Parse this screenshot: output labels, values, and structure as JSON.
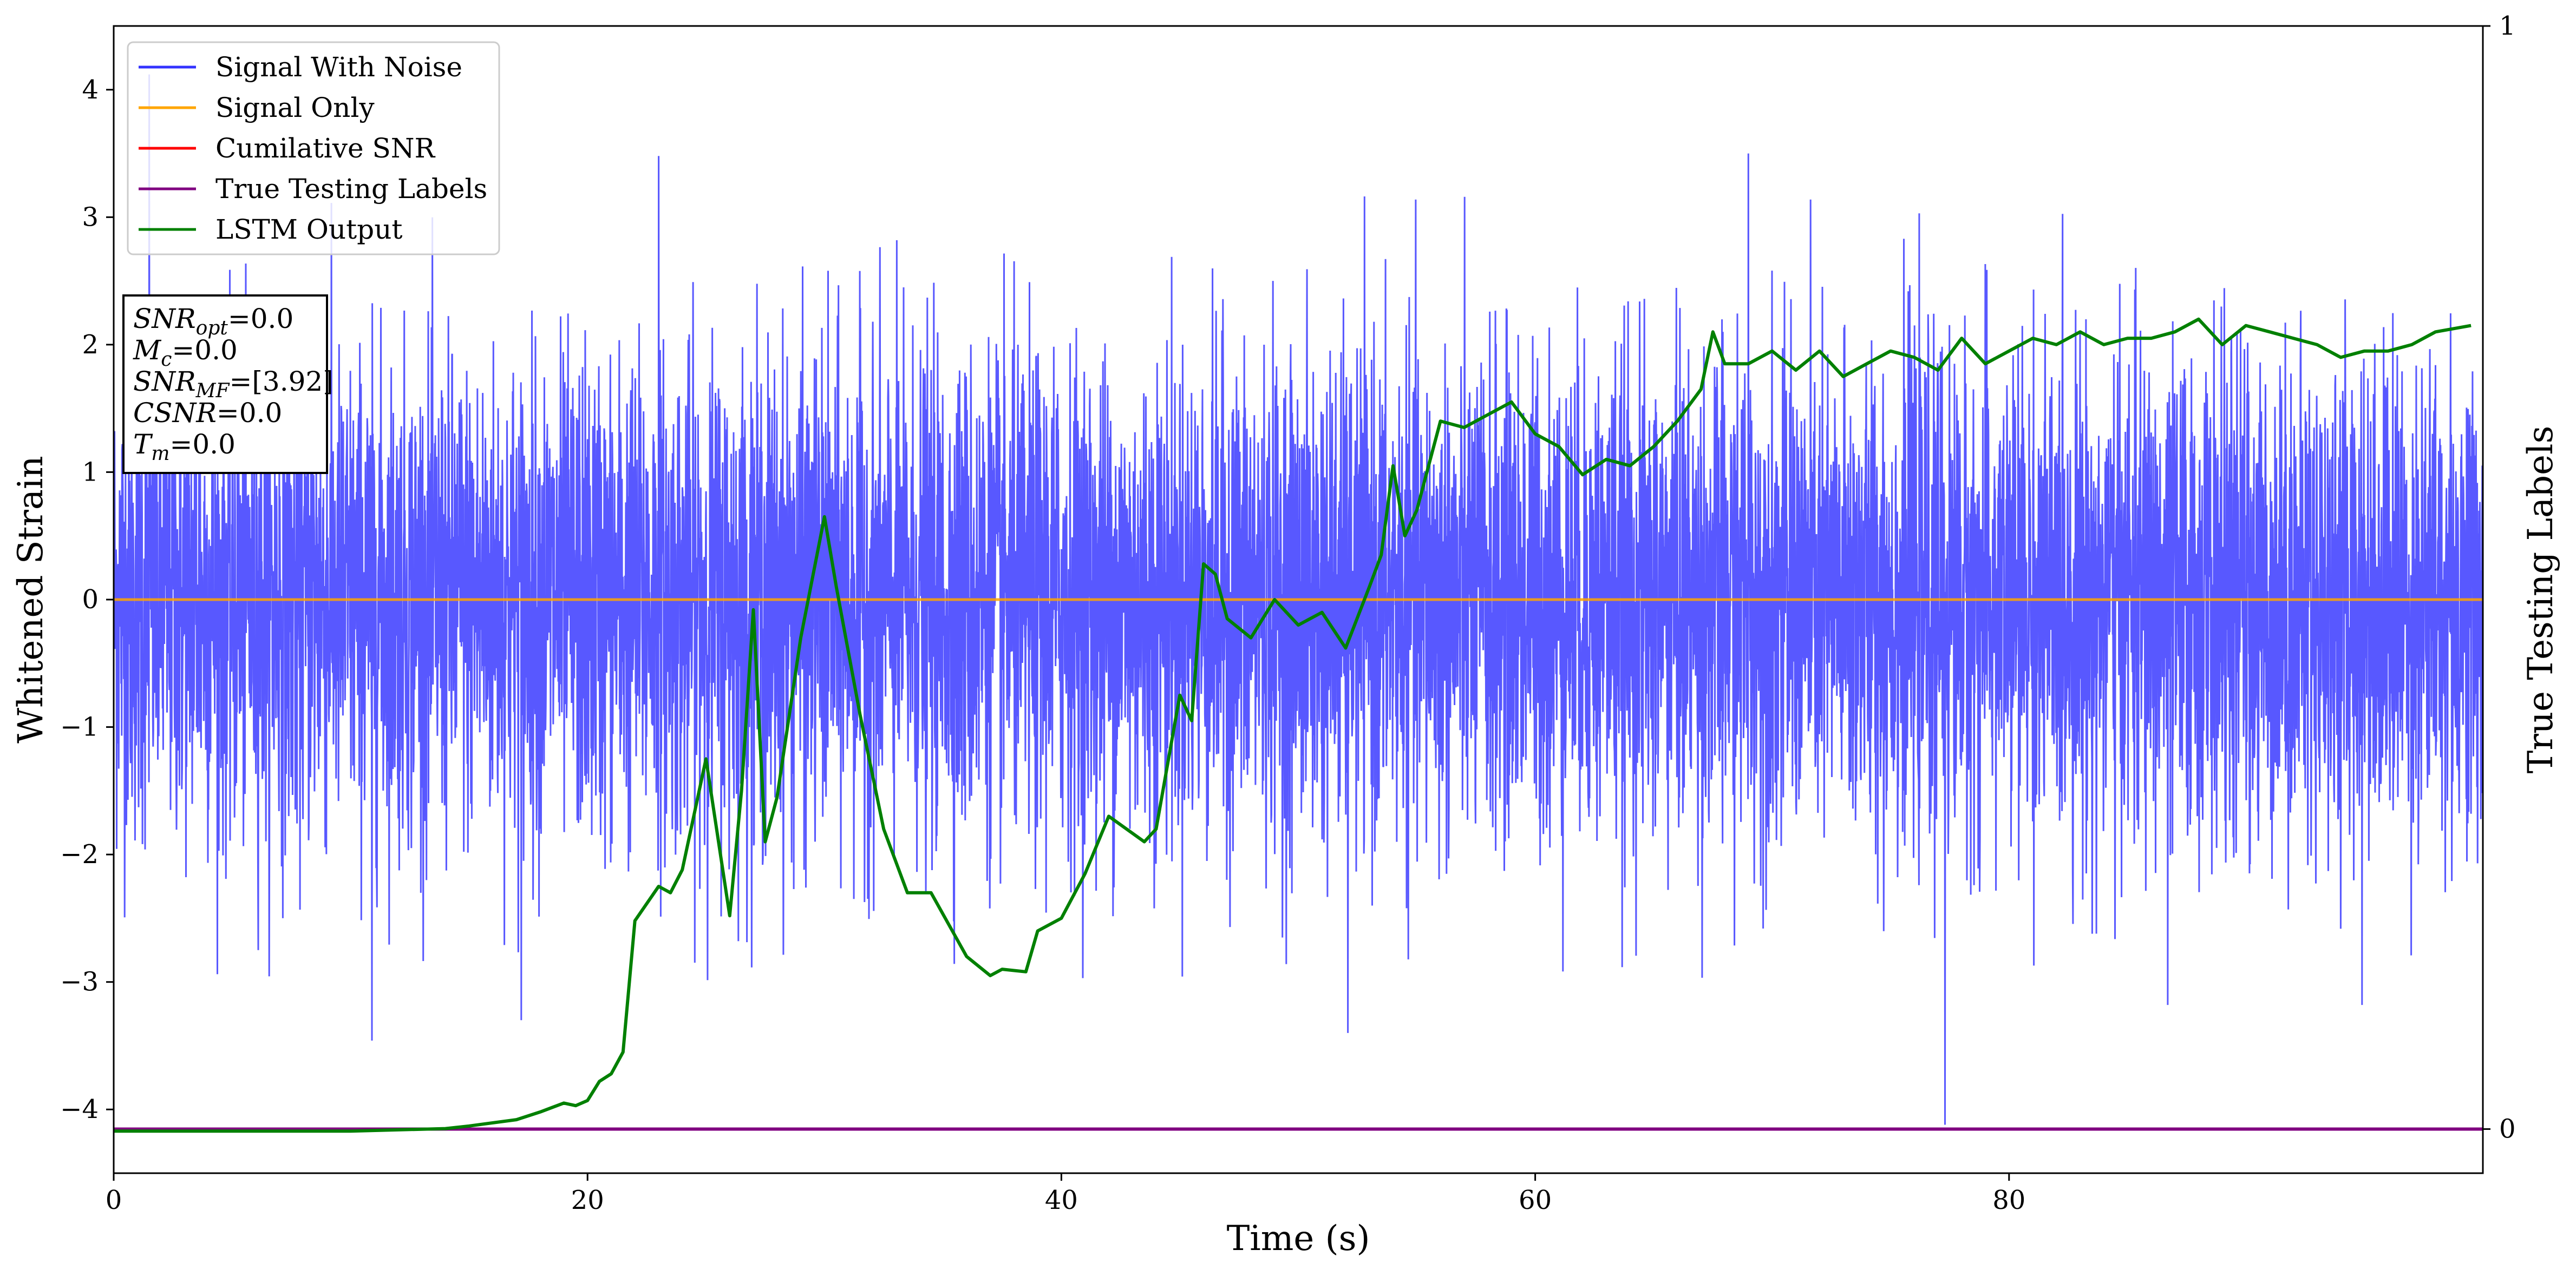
{
  "chart_data": {
    "type": "line",
    "xlabel": "Time (s)",
    "ylabel": "Whitened Strain",
    "y2label": "True Testing Labels",
    "xlim": [
      0,
      100
    ],
    "ylim": [
      -4.5,
      4.5
    ],
    "y2lim": [
      -0.04,
      1.0
    ],
    "x_ticks": [
      0,
      20,
      40,
      60,
      80
    ],
    "y_ticks": [
      -4,
      -3,
      -2,
      -1,
      0,
      1,
      2,
      3,
      4
    ],
    "y2_ticks": [
      0,
      1
    ],
    "grid": false,
    "legend_position": "top-left",
    "series": [
      {
        "name": "Signal With Noise",
        "color": "#3333ff",
        "style": "dense noise, mostly within ±2.4, occasional spikes to about ±3.5",
        "notable_points": [
          [
            1.5,
            4.12
          ],
          [
            10.9,
            -3.46
          ],
          [
            17.2,
            -3.3
          ],
          [
            23.0,
            3.48
          ],
          [
            52.1,
            -3.4
          ],
          [
            69.0,
            3.5
          ],
          [
            77.3,
            -4.12
          ],
          [
            86.7,
            -3.18
          ],
          [
            94.9,
            -3.18
          ]
        ]
      },
      {
        "name": "Signal Only",
        "color": "#ffa500",
        "x": [
          0,
          100
        ],
        "y": [
          0,
          0
        ]
      },
      {
        "name": "Cumilative SNR",
        "color": "#ff0000"
      },
      {
        "name": "True Testing Labels",
        "color": "#800080",
        "axis": "y2",
        "x": [
          0,
          100
        ],
        "y": [
          0,
          0
        ]
      },
      {
        "name": "LSTM Output",
        "color": "#008000",
        "axis": "y",
        "x": [
          0,
          6,
          10,
          12,
          14,
          15,
          17,
          18,
          19,
          19.5,
          20,
          20.5,
          21,
          21.5,
          22,
          23,
          23.5,
          24,
          25,
          26,
          26.5,
          27,
          27.5,
          28,
          29,
          30,
          30.5,
          31.5,
          32.5,
          33.5,
          34.5,
          36,
          37,
          37.5,
          38.5,
          39,
          40,
          41,
          42,
          43.5,
          44,
          45,
          45.5,
          46,
          46.5,
          47,
          48,
          49,
          50,
          51,
          52,
          53,
          53.5,
          54,
          54.5,
          55,
          56,
          57,
          58,
          59,
          60,
          61,
          62,
          63,
          64,
          65,
          66,
          67,
          67.5,
          68,
          69,
          70,
          71,
          72,
          73,
          74,
          75,
          76,
          77,
          78,
          79,
          80,
          81,
          82,
          83,
          84,
          85,
          86,
          87,
          88,
          89,
          90,
          91,
          92,
          93,
          94,
          95,
          96,
          97,
          98,
          99.5
        ],
        "y": [
          -4.17,
          -4.17,
          -4.17,
          -4.16,
          -4.15,
          -4.13,
          -4.08,
          -4.02,
          -3.95,
          -3.97,
          -3.93,
          -3.78,
          -3.72,
          -3.55,
          -2.52,
          -2.25,
          -2.3,
          -2.12,
          -1.25,
          -2.48,
          -1.5,
          -0.08,
          -1.9,
          -1.55,
          -0.3,
          0.65,
          0.1,
          -0.9,
          -1.8,
          -2.3,
          -2.3,
          -2.8,
          -2.95,
          -2.9,
          -2.92,
          -2.6,
          -2.5,
          -2.15,
          -1.7,
          -1.9,
          -1.8,
          -0.75,
          -0.95,
          0.28,
          0.2,
          -0.15,
          -0.3,
          0.0,
          -0.2,
          -0.1,
          -0.38,
          0.1,
          0.35,
          1.05,
          0.5,
          0.7,
          1.4,
          1.35,
          1.45,
          1.55,
          1.3,
          1.2,
          0.98,
          1.1,
          1.05,
          1.2,
          1.4,
          1.65,
          2.1,
          1.85,
          1.85,
          1.95,
          1.8,
          1.95,
          1.75,
          1.85,
          1.95,
          1.9,
          1.8,
          2.05,
          1.85,
          1.95,
          2.05,
          2.0,
          2.1,
          2.0,
          2.05,
          2.05,
          2.1,
          2.2,
          2.0,
          2.15,
          2.1,
          2.05,
          2.0,
          1.9,
          1.95,
          1.95,
          2.0,
          2.1,
          2.15
        ]
      }
    ],
    "info_box": [
      {
        "main": "SNR",
        "sub": "opt",
        "value": "=0.0"
      },
      {
        "main": "M",
        "sub": "c",
        "value": "=0.0"
      },
      {
        "main": "SNR",
        "sub": "MF",
        "value": "=[3.92]"
      },
      {
        "main": "CSNR",
        "sub": "",
        "value": "=0.0"
      },
      {
        "main": "T",
        "sub": "m",
        "value": "=0.0"
      }
    ]
  }
}
